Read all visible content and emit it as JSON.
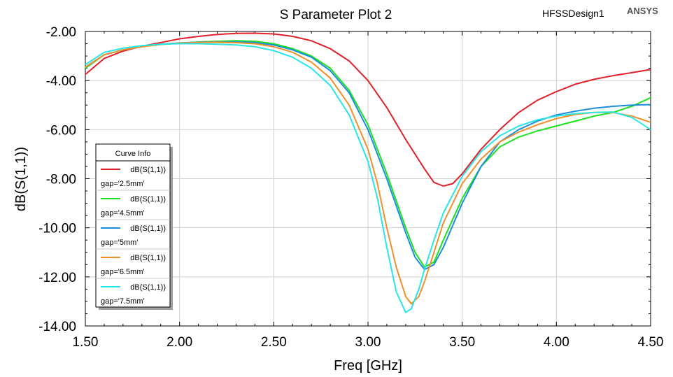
{
  "header": {
    "title": "S Parameter Plot 2",
    "design_name": "HFSSDesign1",
    "brand": "ANSYS"
  },
  "chart_data": {
    "type": "line",
    "title": "S Parameter Plot 2",
    "xlabel": "Freq [GHz]",
    "ylabel": "dB(S(1,1))",
    "xlim": [
      1.5,
      4.5
    ],
    "ylim": [
      -14,
      -2
    ],
    "xticks": [
      "1.50",
      "2.00",
      "2.50",
      "3.00",
      "3.50",
      "4.00",
      "4.50"
    ],
    "yticks": [
      "-2.00",
      "-4.00",
      "-6.00",
      "-8.00",
      "-10.00",
      "-12.00",
      "-14.00"
    ],
    "grid": true,
    "legend": {
      "title": "Curve Info",
      "placement": "left-center"
    },
    "series": [
      {
        "name": "dB(S(1,1))",
        "gap": "gap='2.5mm'",
        "color": "#e0202a",
        "points": [
          [
            1.5,
            -3.75
          ],
          [
            1.6,
            -3.1
          ],
          [
            1.7,
            -2.8
          ],
          [
            1.8,
            -2.6
          ],
          [
            1.9,
            -2.45
          ],
          [
            2.0,
            -2.3
          ],
          [
            2.1,
            -2.2
          ],
          [
            2.2,
            -2.12
          ],
          [
            2.3,
            -2.08
          ],
          [
            2.4,
            -2.07
          ],
          [
            2.5,
            -2.1
          ],
          [
            2.6,
            -2.2
          ],
          [
            2.7,
            -2.38
          ],
          [
            2.8,
            -2.7
          ],
          [
            2.9,
            -3.2
          ],
          [
            3.0,
            -4.0
          ],
          [
            3.1,
            -5.1
          ],
          [
            3.2,
            -6.4
          ],
          [
            3.3,
            -7.6
          ],
          [
            3.35,
            -8.15
          ],
          [
            3.4,
            -8.3
          ],
          [
            3.45,
            -8.2
          ],
          [
            3.5,
            -7.8
          ],
          [
            3.6,
            -6.8
          ],
          [
            3.7,
            -6.0
          ],
          [
            3.8,
            -5.3
          ],
          [
            3.9,
            -4.8
          ],
          [
            4.0,
            -4.45
          ],
          [
            4.1,
            -4.15
          ],
          [
            4.2,
            -3.95
          ],
          [
            4.3,
            -3.8
          ],
          [
            4.4,
            -3.68
          ],
          [
            4.5,
            -3.55
          ]
        ]
      },
      {
        "name": "dB(S(1,1))",
        "gap": "gap='4.5mm'",
        "color": "#1ee01e",
        "points": [
          [
            1.5,
            -3.5
          ],
          [
            1.6,
            -2.95
          ],
          [
            1.7,
            -2.75
          ],
          [
            1.8,
            -2.62
          ],
          [
            1.9,
            -2.52
          ],
          [
            2.0,
            -2.47
          ],
          [
            2.1,
            -2.43
          ],
          [
            2.2,
            -2.4
          ],
          [
            2.3,
            -2.38
          ],
          [
            2.4,
            -2.4
          ],
          [
            2.5,
            -2.5
          ],
          [
            2.6,
            -2.7
          ],
          [
            2.7,
            -3.0
          ],
          [
            2.8,
            -3.5
          ],
          [
            2.9,
            -4.4
          ],
          [
            3.0,
            -5.8
          ],
          [
            3.1,
            -7.8
          ],
          [
            3.2,
            -10.0
          ],
          [
            3.25,
            -11.0
          ],
          [
            3.3,
            -11.6
          ],
          [
            3.35,
            -11.4
          ],
          [
            3.4,
            -10.5
          ],
          [
            3.5,
            -8.8
          ],
          [
            3.6,
            -7.5
          ],
          [
            3.7,
            -6.7
          ],
          [
            3.8,
            -6.3
          ],
          [
            3.9,
            -6.05
          ],
          [
            4.0,
            -5.85
          ],
          [
            4.1,
            -5.65
          ],
          [
            4.2,
            -5.45
          ],
          [
            4.3,
            -5.3
          ],
          [
            4.4,
            -5.05
          ],
          [
            4.5,
            -4.7
          ]
        ]
      },
      {
        "name": "dB(S(1,1))",
        "gap": "gap='5mm'",
        "color": "#1a8fdc",
        "points": [
          [
            1.5,
            -3.45
          ],
          [
            1.6,
            -2.95
          ],
          [
            1.7,
            -2.75
          ],
          [
            1.8,
            -2.62
          ],
          [
            1.9,
            -2.52
          ],
          [
            2.0,
            -2.47
          ],
          [
            2.1,
            -2.44
          ],
          [
            2.2,
            -2.43
          ],
          [
            2.3,
            -2.43
          ],
          [
            2.4,
            -2.45
          ],
          [
            2.5,
            -2.55
          ],
          [
            2.6,
            -2.75
          ],
          [
            2.7,
            -3.05
          ],
          [
            2.8,
            -3.6
          ],
          [
            2.9,
            -4.5
          ],
          [
            3.0,
            -6.0
          ],
          [
            3.1,
            -8.0
          ],
          [
            3.2,
            -10.2
          ],
          [
            3.25,
            -11.2
          ],
          [
            3.3,
            -11.7
          ],
          [
            3.35,
            -11.5
          ],
          [
            3.4,
            -10.8
          ],
          [
            3.5,
            -9.0
          ],
          [
            3.6,
            -7.5
          ],
          [
            3.7,
            -6.5
          ],
          [
            3.8,
            -6.0
          ],
          [
            3.9,
            -5.65
          ],
          [
            4.0,
            -5.4
          ],
          [
            4.1,
            -5.25
          ],
          [
            4.2,
            -5.13
          ],
          [
            4.3,
            -5.05
          ],
          [
            4.4,
            -5.0
          ],
          [
            4.5,
            -4.98
          ]
        ]
      },
      {
        "name": "dB(S(1,1))",
        "gap": "gap='6.5mm'",
        "color": "#f0902a",
        "points": [
          [
            1.5,
            -3.45
          ],
          [
            1.6,
            -2.95
          ],
          [
            1.7,
            -2.75
          ],
          [
            1.8,
            -2.62
          ],
          [
            1.9,
            -2.53
          ],
          [
            2.0,
            -2.48
          ],
          [
            2.1,
            -2.45
          ],
          [
            2.2,
            -2.44
          ],
          [
            2.3,
            -2.46
          ],
          [
            2.4,
            -2.5
          ],
          [
            2.5,
            -2.62
          ],
          [
            2.6,
            -2.85
          ],
          [
            2.7,
            -3.25
          ],
          [
            2.8,
            -3.9
          ],
          [
            2.9,
            -5.0
          ],
          [
            3.0,
            -6.8
          ],
          [
            3.05,
            -8.2
          ],
          [
            3.1,
            -10.0
          ],
          [
            3.15,
            -11.6
          ],
          [
            3.2,
            -12.8
          ],
          [
            3.23,
            -13.1
          ],
          [
            3.27,
            -12.8
          ],
          [
            3.3,
            -12.2
          ],
          [
            3.35,
            -11.0
          ],
          [
            3.4,
            -9.8
          ],
          [
            3.5,
            -8.2
          ],
          [
            3.6,
            -7.2
          ],
          [
            3.7,
            -6.5
          ],
          [
            3.8,
            -6.1
          ],
          [
            3.9,
            -5.8
          ],
          [
            4.0,
            -5.55
          ],
          [
            4.1,
            -5.38
          ],
          [
            4.2,
            -5.3
          ],
          [
            4.3,
            -5.3
          ],
          [
            4.4,
            -5.45
          ],
          [
            4.5,
            -5.7
          ]
        ]
      },
      {
        "name": "dB(S(1,1))",
        "gap": "gap='7.5mm'",
        "color": "#29e6e6",
        "points": [
          [
            1.5,
            -3.35
          ],
          [
            1.6,
            -2.85
          ],
          [
            1.7,
            -2.68
          ],
          [
            1.8,
            -2.58
          ],
          [
            1.9,
            -2.52
          ],
          [
            2.0,
            -2.5
          ],
          [
            2.1,
            -2.5
          ],
          [
            2.2,
            -2.52
          ],
          [
            2.3,
            -2.55
          ],
          [
            2.4,
            -2.62
          ],
          [
            2.5,
            -2.78
          ],
          [
            2.6,
            -3.05
          ],
          [
            2.7,
            -3.5
          ],
          [
            2.8,
            -4.2
          ],
          [
            2.9,
            -5.4
          ],
          [
            3.0,
            -7.3
          ],
          [
            3.05,
            -8.8
          ],
          [
            3.1,
            -10.8
          ],
          [
            3.15,
            -12.6
          ],
          [
            3.2,
            -13.45
          ],
          [
            3.23,
            -13.3
          ],
          [
            3.27,
            -12.5
          ],
          [
            3.3,
            -11.7
          ],
          [
            3.35,
            -10.5
          ],
          [
            3.4,
            -9.4
          ],
          [
            3.5,
            -7.9
          ],
          [
            3.6,
            -6.9
          ],
          [
            3.7,
            -6.25
          ],
          [
            3.8,
            -5.85
          ],
          [
            3.9,
            -5.6
          ],
          [
            4.0,
            -5.45
          ],
          [
            4.1,
            -5.35
          ],
          [
            4.2,
            -5.3
          ],
          [
            4.3,
            -5.28
          ],
          [
            4.4,
            -5.5
          ],
          [
            4.5,
            -6.0
          ]
        ]
      }
    ]
  }
}
